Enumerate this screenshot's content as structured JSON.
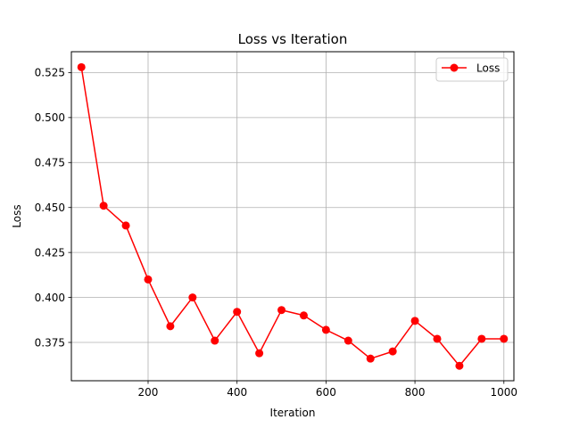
{
  "chart_data": {
    "type": "line",
    "title": "Loss vs Iteration",
    "xlabel": "Iteration",
    "ylabel": "Loss",
    "xlim": [
      27.5,
      1022.5
    ],
    "ylim": [
      0.3537,
      0.5366
    ],
    "xticks": [
      200,
      400,
      600,
      800,
      1000
    ],
    "yticks": [
      0.375,
      0.4,
      0.425,
      0.45,
      0.475,
      0.5,
      0.525
    ],
    "xtick_labels": [
      "200",
      "400",
      "600",
      "800",
      "1000"
    ],
    "ytick_labels": [
      "0.375",
      "0.400",
      "0.425",
      "0.450",
      "0.475",
      "0.500",
      "0.525"
    ],
    "grid": true,
    "legend_position": "top-right",
    "series": [
      {
        "name": "Loss",
        "color": "#ff0000",
        "marker": "circle",
        "x": [
          50,
          100,
          150,
          200,
          250,
          300,
          350,
          400,
          450,
          500,
          550,
          600,
          650,
          700,
          750,
          800,
          850,
          900,
          950,
          1000
        ],
        "y": [
          0.528,
          0.451,
          0.44,
          0.41,
          0.384,
          0.4,
          0.376,
          0.392,
          0.369,
          0.393,
          0.39,
          0.382,
          0.376,
          0.366,
          0.37,
          0.387,
          0.377,
          0.362,
          0.377,
          0.377
        ]
      }
    ]
  }
}
